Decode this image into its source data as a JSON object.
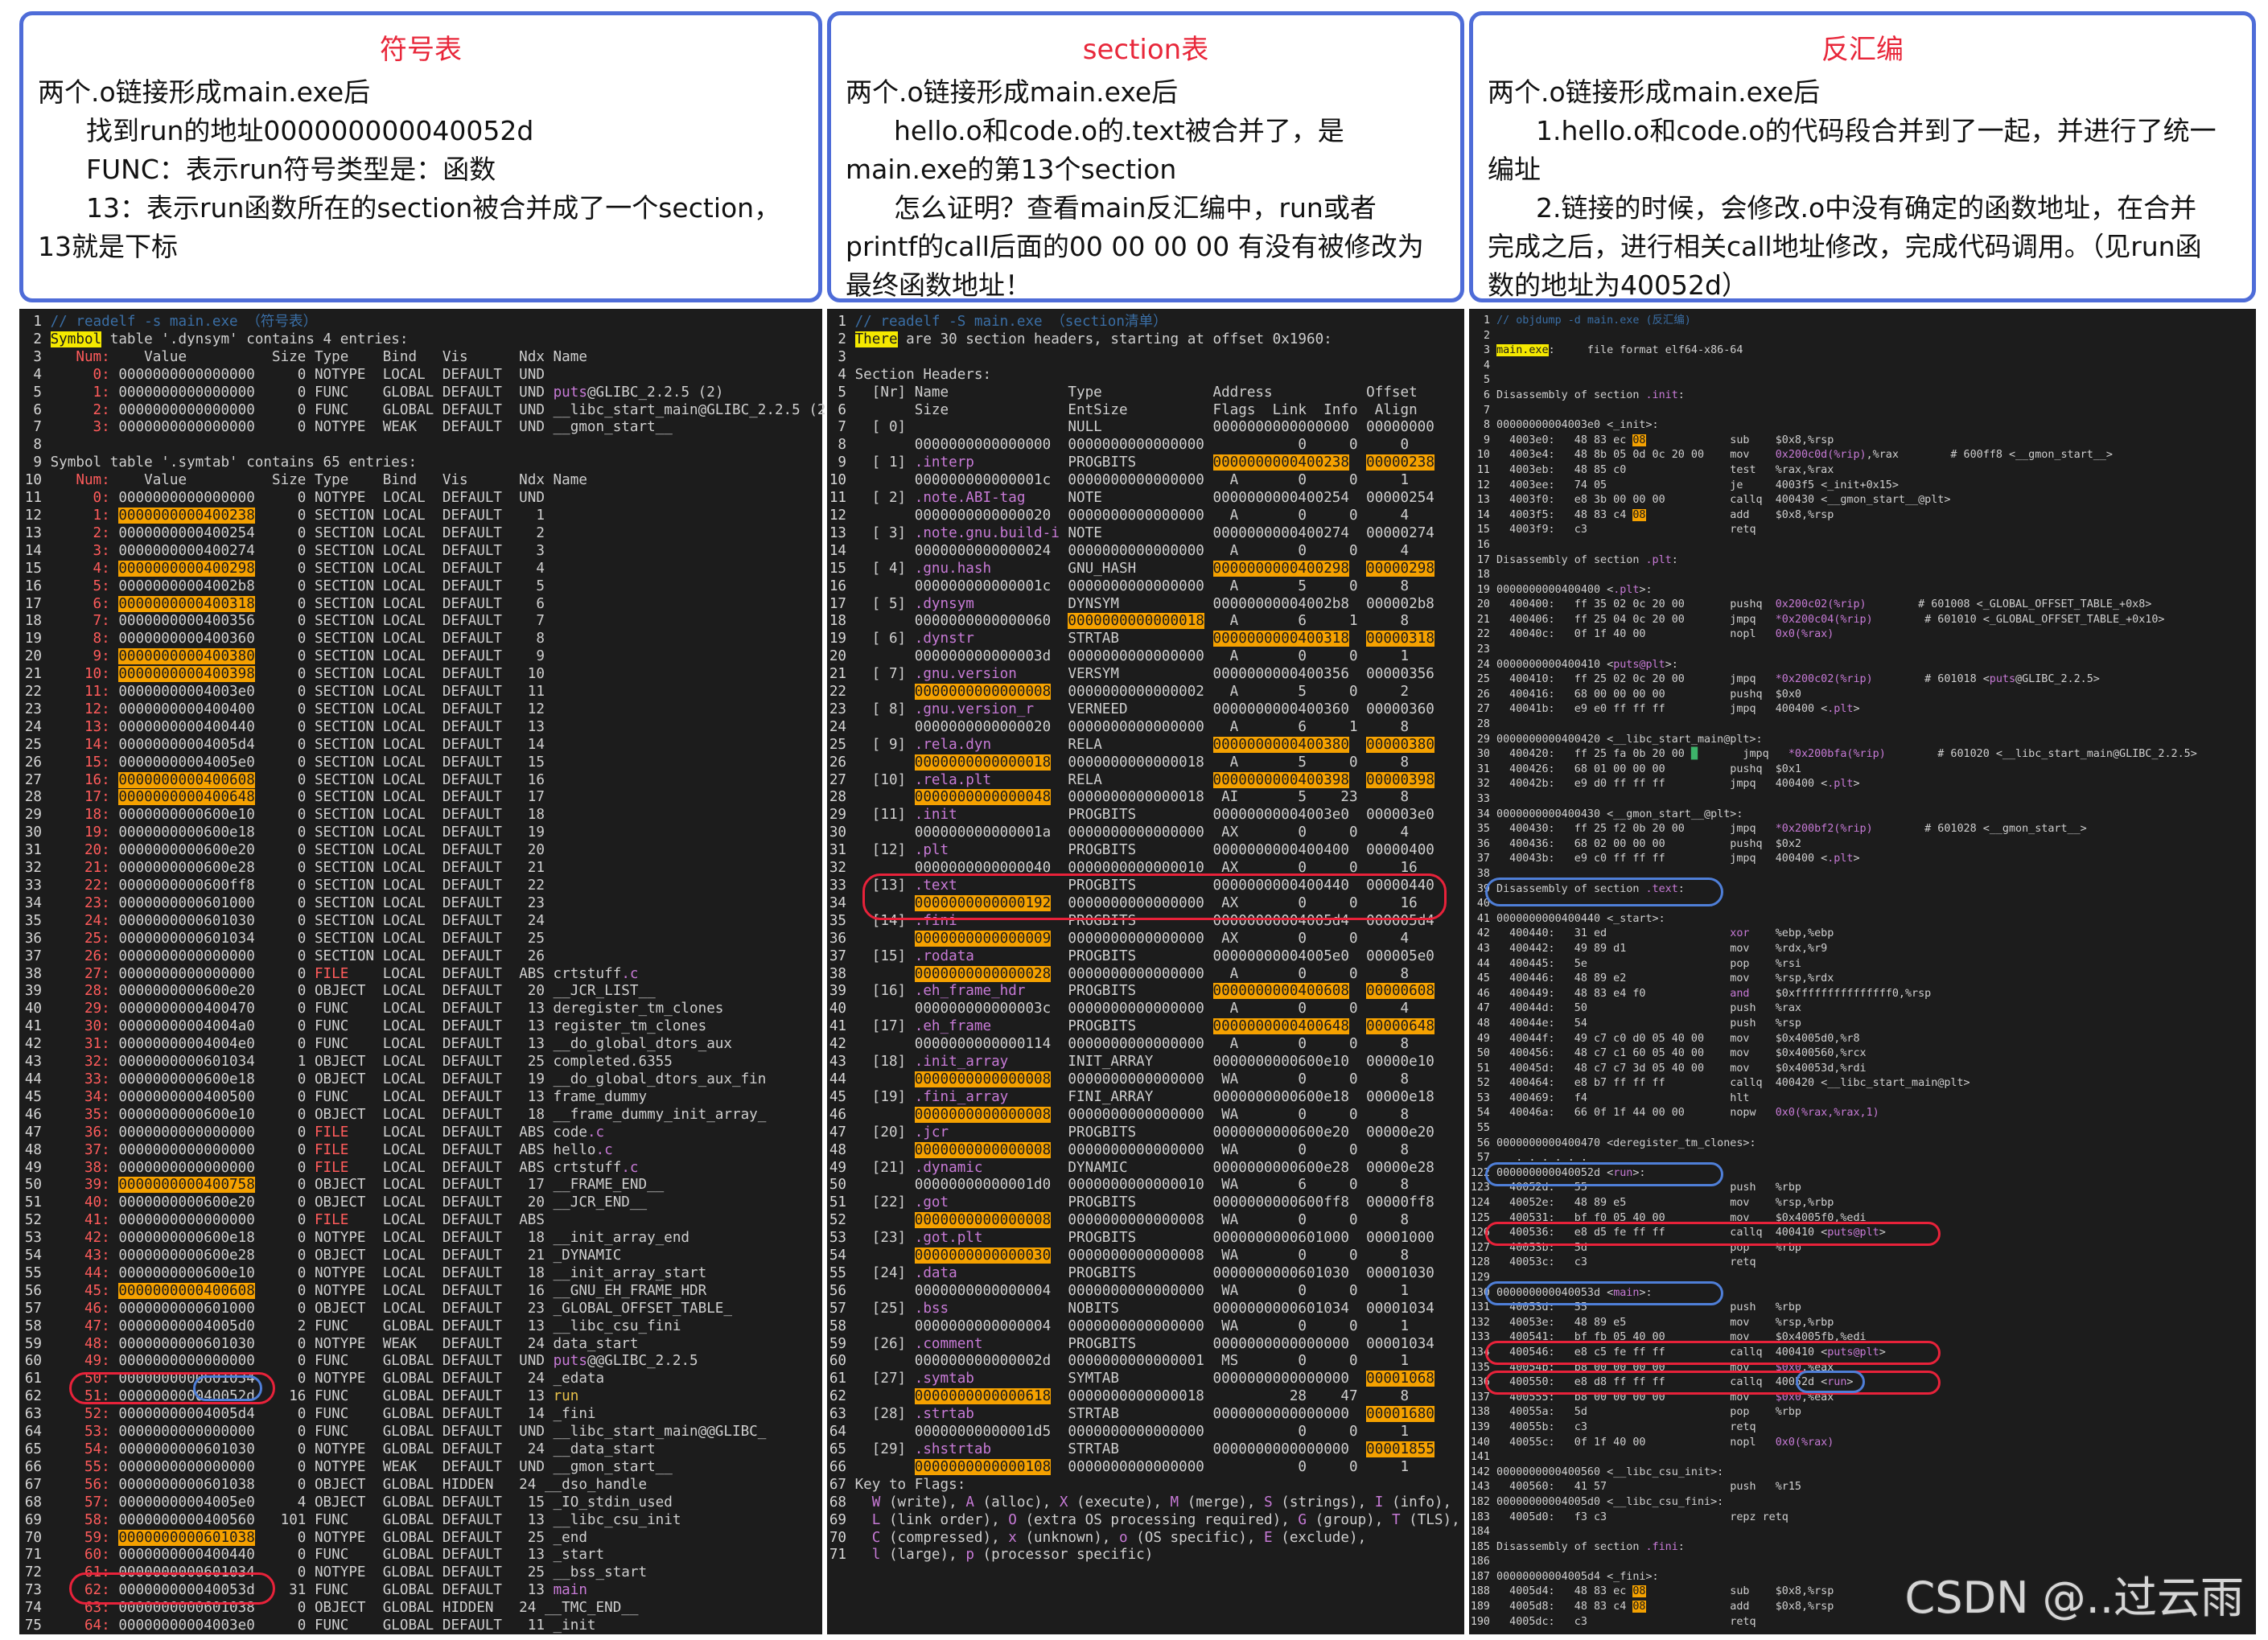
{
  "cards": [
    {
      "title": "符号表",
      "lines": [
        {
          "t": "两个.o链接形成main.exe后",
          "i": false
        },
        {
          "t": "找到run的地址000000000040052d",
          "i": true
        },
        {
          "t": "FUNC：表示run符号类型是：函数",
          "i": true
        },
        {
          "t": "13：表示run函数所在的section被合并成了一个section，",
          "i": true
        },
        {
          "t": "13就是下标",
          "i": false
        }
      ]
    },
    {
      "title": "section表",
      "lines": [
        {
          "t": "两个.o链接形成main.exe后",
          "i": false
        },
        {
          "t": "hello.o和code.o的.text被合并了，是",
          "i": true
        },
        {
          "t": "main.exe的第13个section",
          "i": false
        },
        {
          "t": "怎么证明？查看main反汇编中，run或者",
          "i": true
        },
        {
          "t": "printf的call后面的00 00 00 00 有没有被修改为",
          "i": false
        },
        {
          "t": "最终函数地址！",
          "i": false
        }
      ]
    },
    {
      "title": "反汇编",
      "lines": [
        {
          "t": "两个.o链接形成main.exe后",
          "i": false
        },
        {
          "t": "1.hello.o和code.o的代码段合并到了一起，并进行了统一",
          "i": true
        },
        {
          "t": "编址",
          "i": false
        },
        {
          "t": "2.链接的时候，会修改.o中没有确定的函数地址，在合并",
          "i": true
        },
        {
          "t": "完成之后，进行相关call地址修改，完成代码调用。（见run函",
          "i": false
        },
        {
          "t": "数的地址为40052d）",
          "i": false
        }
      ]
    }
  ],
  "symtab": [
    "1|// readelf -s main.exe （符号表）",
    "2|Symbol table '.dynsym' contains 4 entries:",
    "3|   Num:    Value          Size Type    Bind   Vis      Ndx Name",
    "4|     0: 0000000000000000     0 NOTYPE  LOCAL  DEFAULT  UND",
    "5|     1: 0000000000000000     0 FUNC    GLOBAL DEFAULT  UND puts@GLIBC_2.2.5 (2)",
    "6|     2: 0000000000000000     0 FUNC    GLOBAL DEFAULT  UND __libc_start_main@GLIBC_2.2.5 (2)",
    "7|     3: 0000000000000000     0 NOTYPE  WEAK   DEFAULT  UND __gmon_start__",
    "8|",
    "9|Symbol table '.symtab' contains 65 entries:",
    "10|   Num:    Value          Size Type    Bind   Vis      Ndx Name",
    "11|     0: 0000000000000000     0 NOTYPE  LOCAL  DEFAULT  UND",
    "12|     1: 0000000000400238     0 SECTION LOCAL  DEFAULT    1",
    "13|     2: 0000000000400254     0 SECTION LOCAL  DEFAULT    2",
    "14|     3: 0000000000400274     0 SECTION LOCAL  DEFAULT    3",
    "15|     4: 0000000000400298     0 SECTION LOCAL  DEFAULT    4",
    "16|     5: 00000000004002b8     0 SECTION LOCAL  DEFAULT    5",
    "17|     6: 0000000000400318     0 SECTION LOCAL  DEFAULT    6",
    "18|     7: 0000000000400356     0 SECTION LOCAL  DEFAULT    7",
    "19|     8: 0000000000400360     0 SECTION LOCAL  DEFAULT    8",
    "20|     9: 0000000000400380     0 SECTION LOCAL  DEFAULT    9",
    "21|    10: 0000000000400398     0 SECTION LOCAL  DEFAULT   10",
    "22|    11: 00000000004003e0     0 SECTION LOCAL  DEFAULT   11",
    "23|    12: 0000000000400400     0 SECTION LOCAL  DEFAULT   12",
    "24|    13: 0000000000400440     0 SECTION LOCAL  DEFAULT   13",
    "25|    14: 00000000004005d4     0 SECTION LOCAL  DEFAULT   14",
    "26|    15: 00000000004005e0     0 SECTION LOCAL  DEFAULT   15",
    "27|    16: 0000000000400608     0 SECTION LOCAL  DEFAULT   16",
    "28|    17: 0000000000400648     0 SECTION LOCAL  DEFAULT   17",
    "29|    18: 0000000000600e10     0 SECTION LOCAL  DEFAULT   18",
    "30|    19: 0000000000600e18     0 SECTION LOCAL  DEFAULT   19",
    "31|    20: 0000000000600e20     0 SECTION LOCAL  DEFAULT   20",
    "32|    21: 0000000000600e28     0 SECTION LOCAL  DEFAULT   21",
    "33|    22: 0000000000600ff8     0 SECTION LOCAL  DEFAULT   22",
    "34|    23: 0000000000601000     0 SECTION LOCAL  DEFAULT   23",
    "35|    24: 0000000000601030     0 SECTION LOCAL  DEFAULT   24",
    "36|    25: 0000000000601034     0 SECTION LOCAL  DEFAULT   25",
    "37|    26: 0000000000000000     0 SECTION LOCAL  DEFAULT   26",
    "38|    27: 0000000000000000     0 FILE    LOCAL  DEFAULT  ABS crtstuff.c",
    "39|    28: 0000000000600e20     0 OBJECT  LOCAL  DEFAULT   20 __JCR_LIST__",
    "40|    29: 0000000000400470     0 FUNC    LOCAL  DEFAULT   13 deregister_tm_clones",
    "41|    30: 00000000004004a0     0 FUNC    LOCAL  DEFAULT   13 register_tm_clones",
    "42|    31: 00000000004004e0     0 FUNC    LOCAL  DEFAULT   13 __do_global_dtors_aux",
    "43|    32: 0000000000601034     1 OBJECT  LOCAL  DEFAULT   25 completed.6355",
    "44|    33: 0000000000600e18     0 OBJECT  LOCAL  DEFAULT   19 __do_global_dtors_aux_fin",
    "45|    34: 0000000000400500     0 FUNC    LOCAL  DEFAULT   13 frame_dummy",
    "46|    35: 0000000000600e10     0 OBJECT  LOCAL  DEFAULT   18 __frame_dummy_init_array_",
    "47|    36: 0000000000000000     0 FILE    LOCAL  DEFAULT  ABS code.c",
    "48|    37: 0000000000000000     0 FILE    LOCAL  DEFAULT  ABS hello.c",
    "49|    38: 0000000000000000     0 FILE    LOCAL  DEFAULT  ABS crtstuff.c",
    "50|    39: 0000000000400758     0 OBJECT  LOCAL  DEFAULT   17 __FRAME_END__",
    "51|    40: 0000000000600e20     0 OBJECT  LOCAL  DEFAULT   20 __JCR_END__",
    "52|    41: 0000000000000000     0 FILE    LOCAL  DEFAULT  ABS",
    "53|    42: 0000000000600e18     0 NOTYPE  LOCAL  DEFAULT   18 __init_array_end",
    "54|    43: 0000000000600e28     0 OBJECT  LOCAL  DEFAULT   21 _DYNAMIC",
    "55|    44: 0000000000600e10     0 NOTYPE  LOCAL  DEFAULT   18 __init_array_start",
    "56|    45: 0000000000400608     0 NOTYPE  LOCAL  DEFAULT   16 __GNU_EH_FRAME_HDR",
    "57|    46: 0000000000601000     0 OBJECT  LOCAL  DEFAULT   23 _GLOBAL_OFFSET_TABLE_",
    "58|    47: 00000000004005d0     2 FUNC    GLOBAL DEFAULT   13 __libc_csu_fini",
    "59|    48: 0000000000601030     0 NOTYPE  WEAK   DEFAULT   24 data_start",
    "60|    49: 0000000000000000     0 FUNC    GLOBAL DEFAULT  UND puts@@GLIBC_2.2.5",
    "61|    50: 0000000000601034     0 NOTYPE  GLOBAL DEFAULT   24 _edata",
    "62|    51: 000000000040052d    16 FUNC    GLOBAL DEFAULT   13 run",
    "63|    52: 00000000004005d4     0 FUNC    GLOBAL DEFAULT   14 _fini",
    "64|    53: 0000000000000000     0 FUNC    GLOBAL DEFAULT  UND __libc_start_main@@GLIBC_",
    "65|    54: 0000000000601030     0 NOTYPE  GLOBAL DEFAULT   24 __data_start",
    "66|    55: 0000000000000000     0 NOTYPE  WEAK   DEFAULT  UND __gmon_start__",
    "67|    56: 0000000000601038     0 OBJECT  GLOBAL HIDDEN   24 __dso_handle",
    "68|    57: 00000000004005e0     4 OBJECT  GLOBAL DEFAULT   15 _IO_stdin_used",
    "69|    58: 0000000000400560   101 FUNC    GLOBAL DEFAULT   13 __libc_csu_init",
    "70|    59: 0000000000601038     0 NOTYPE  GLOBAL DEFAULT   25 _end",
    "71|    60: 0000000000400440     0 FUNC    GLOBAL DEFAULT   13 _start",
    "72|    61: 0000000000601034     0 NOTYPE  GLOBAL DEFAULT   25 __bss_start",
    "73|    62: 000000000040053d    31 FUNC    GLOBAL DEFAULT   13 main",
    "74|    63: 0000000000601038     0 OBJECT  GLOBAL HIDDEN   24 __TMC_END__",
    "75|    64: 00000000004003e0     0 FUNC    GLOBAL DEFAULT   11 _init"
  ],
  "sectab": [
    "1|// readelf -S main.exe （section清单）",
    "2|There are 30 section headers, starting at offset 0x1960:",
    "3|",
    "4|Section Headers:",
    "5|  [Nr] Name              Type             Address           Offset",
    "6|       Size              EntSize          Flags  Link  Info  Align",
    "7|  [ 0]                   NULL             0000000000000000  00000000",
    "8|       0000000000000000  0000000000000000           0     0     0",
    "9|  [ 1] .interp           PROGBITS         0000000000400238  00000238",
    "10|       000000000000001c  0000000000000000   A       0     0     1",
    "11|  [ 2] .note.ABI-tag     NOTE             0000000000400254  00000254",
    "12|       0000000000000020  0000000000000000   A       0     0     4",
    "13|  [ 3] .note.gnu.build-i NOTE             0000000000400274  00000274",
    "14|       0000000000000024  0000000000000000   A       0     0     4",
    "15|  [ 4] .gnu.hash         GNU_HASH         0000000000400298  00000298",
    "16|       000000000000001c  0000000000000000   A       5     0     8",
    "17|  [ 5] .dynsym           DYNSYM           00000000004002b8  000002b8",
    "18|       0000000000000060  0000000000000018   A       6     1     8",
    "19|  [ 6] .dynstr           STRTAB           0000000000400318  00000318",
    "20|       000000000000003d  0000000000000000   A       0     0     1",
    "21|  [ 7] .gnu.version      VERSYM           0000000000400356  00000356",
    "22|       0000000000000008  0000000000000002   A       5     0     2",
    "23|  [ 8] .gnu.version_r    VERNEED          0000000000400360  00000360",
    "24|       0000000000000020  0000000000000000   A       6     1     8",
    "25|  [ 9] .rela.dyn         RELA             0000000000400380  00000380",
    "26|       0000000000000018  0000000000000018   A       5     0     8",
    "27|  [10] .rela.plt         RELA             0000000000400398  00000398",
    "28|       0000000000000048  0000000000000018  AI       5    23     8",
    "29|  [11] .init             PROGBITS         00000000004003e0  000003e0",
    "30|       000000000000001a  0000000000000000  AX       0     0     4",
    "31|  [12] .plt              PROGBITS         0000000000400400  00000400",
    "32|       0000000000000040  0000000000000010  AX       0     0     16",
    "33|  [13] .text             PROGBITS         0000000000400440  00000440",
    "34|       0000000000000192  0000000000000000  AX       0     0     16",
    "35|  [14] .fini             PROGBITS         00000000004005d4  000005d4",
    "36|       0000000000000009  0000000000000000  AX       0     0     4",
    "37|  [15] .rodata           PROGBITS         00000000004005e0  000005e0",
    "38|       0000000000000028  0000000000000000   A       0     0     8",
    "39|  [16] .eh_frame_hdr     PROGBITS         0000000000400608  00000608",
    "40|       000000000000003c  0000000000000000   A       0     0     4",
    "41|  [17] .eh_frame         PROGBITS         0000000000400648  00000648",
    "42|       0000000000000114  0000000000000000   A       0     0     8",
    "43|  [18] .init_array       INIT_ARRAY       0000000000600e10  00000e10",
    "44|       0000000000000008  0000000000000000  WA       0     0     8",
    "45|  [19] .fini_array       FINI_ARRAY       0000000000600e18  00000e18",
    "46|       0000000000000008  0000000000000000  WA       0     0     8",
    "47|  [20] .jcr              PROGBITS         0000000000600e20  00000e20",
    "48|       0000000000000008  0000000000000000  WA       0     0     8",
    "49|  [21] .dynamic          DYNAMIC          0000000000600e28  00000e28",
    "50|       00000000000001d0  0000000000000010  WA       6     0     8",
    "51|  [22] .got              PROGBITS         0000000000600ff8  00000ff8",
    "52|       0000000000000008  0000000000000008  WA       0     0     8",
    "53|  [23] .got.plt          PROGBITS         0000000000601000  00001000",
    "54|       0000000000000030  0000000000000008  WA       0     0     8",
    "55|  [24] .data             PROGBITS         0000000000601030  00001030",
    "56|       0000000000000004  0000000000000000  WA       0     0     1",
    "57|  [25] .bss              NOBITS           0000000000601034  00001034",
    "58|       0000000000000004  0000000000000000  WA       0     0     1",
    "59|  [26] .comment          PROGBITS         0000000000000000  00001034",
    "60|       000000000000002d  0000000000000001  MS       0     0     1",
    "61|  [27] .symtab           SYMTAB           0000000000000000  00001068",
    "62|       0000000000000618  0000000000000018          28    47     8",
    "63|  [28] .strtab           STRTAB           0000000000000000  00001680",
    "64|       00000000000001d5  0000000000000000           0     0     1",
    "65|  [29] .shstrtab         STRTAB           0000000000000000  00001855",
    "66|       0000000000000108  0000000000000000           0     0     1",
    "67|Key to Flags:",
    "68|  W (write), A (alloc), X (execute), M (merge), S (strings), I (info),",
    "69|  L (link order), O (extra OS processing required), G (group), T (TLS),",
    "70|  C (compressed), x (unknown), o (OS specific), E (exclude),",
    "71|  l (large), p (processor specific)"
  ],
  "disasm": [
    "1|// objdump -d main.exe (反汇编)",
    "2|",
    "3|main.exe:     file format elf64-x86-64",
    "4|",
    "5|",
    "6|Disassembly of section .init:",
    "7|",
    "8|00000000004003e0 <_init>:",
    "9|  4003e0:   48 83 ec 08             sub    $0x8,%rsp",
    "10|  4003e4:   48 8b 05 0d 0c 20 00    mov    0x200c0d(%rip),%rax        # 600ff8 <__gmon_start__>",
    "11|  4003eb:   48 85 c0                test   %rax,%rax",
    "12|  4003ee:   74 05                   je     4003f5 <_init+0x15>",
    "13|  4003f0:   e8 3b 00 00 00          callq  400430 <__gmon_start__@plt>",
    "14|  4003f5:   48 83 c4 08             add    $0x8,%rsp",
    "15|  4003f9:   c3                      retq",
    "16|",
    "17|Disassembly of section .plt:",
    "18|",
    "19|0000000000400400 <.plt>:",
    "20|  400400:   ff 35 02 0c 20 00       pushq  0x200c02(%rip)        # 601008 <_GLOBAL_OFFSET_TABLE_+0x8>",
    "21|  400406:   ff 25 04 0c 20 00       jmpq   *0x200c04(%rip)        # 601010 <_GLOBAL_OFFSET_TABLE_+0x10>",
    "22|  40040c:   0f 1f 40 00             nopl   0x0(%rax)",
    "23|",
    "24|0000000000400410 <puts@plt>:",
    "25|  400410:   ff 25 02 0c 20 00       jmpq   *0x200c02(%rip)        # 601018 <puts@GLIBC_2.2.5>",
    "26|  400416:   68 00 00 00 00          pushq  $0x0",
    "27|  40041b:   e9 e0 ff ff ff          jmpq   400400 <.plt>",
    "28|",
    "29|0000000000400420 <__libc_start_main@plt>:",
    "30|  400420:   ff 25 fa 0b 20 00       jmpq   *0x200bfa(%rip)        # 601020 <__libc_start_main@GLIBC_2.2.5>",
    "31|  400426:   68 01 00 00 00          pushq  $0x1",
    "32|  40042b:   e9 d0 ff ff ff          jmpq   400400 <.plt>",
    "33|",
    "34|0000000000400430 <__gmon_start__@plt>:",
    "35|  400430:   ff 25 f2 0b 20 00       jmpq   *0x200bf2(%rip)        # 601028 <__gmon_start__>",
    "36|  400436:   68 02 00 00 00          pushq  $0x2",
    "37|  40043b:   e9 c0 ff ff ff          jmpq   400400 <.plt>",
    "38|",
    "39|Disassembly of section .text:",
    "40|",
    "41|0000000000400440 <_start>:",
    "42|  400440:   31 ed                   xor    %ebp,%ebp",
    "43|  400442:   49 89 d1                mov    %rdx,%r9",
    "44|  400445:   5e                      pop    %rsi",
    "45|  400446:   48 89 e2                mov    %rsp,%rdx",
    "46|  400449:   48 83 e4 f0             and    $0xfffffffffffffff0,%rsp",
    "47|  40044d:   50                      push   %rax",
    "48|  40044e:   54                      push   %rsp",
    "49|  40044f:   49 c7 c0 d0 05 40 00    mov    $0x4005d0,%r8",
    "50|  400456:   48 c7 c1 60 05 40 00    mov    $0x400560,%rcx",
    "51|  40045d:   48 c7 c7 3d 05 40 00    mov    $0x40053d,%rdi",
    "52|  400464:   e8 b7 ff ff ff          callq  400420 <__libc_start_main@plt>",
    "53|  400469:   f4                      hlt",
    "54|  40046a:   66 0f 1f 44 00 00       nopw   0x0(%rax,%rax,1)",
    "55|",
    "56|0000000000400470 <deregister_tm_clones>:",
    "57|   . . . . . .",
    "122|000000000040052d <run>:",
    "123|  40052d:   55                      push   %rbp",
    "124|  40052e:   48 89 e5                mov    %rsp,%rbp",
    "125|  400531:   bf f0 05 40 00          mov    $0x4005f0,%edi",
    "126|  400536:   e8 d5 fe ff ff          callq  400410 <puts@plt>",
    "127|  40053b:   5d                      pop    %rbp",
    "128|  40053c:   c3                      retq",
    "129|",
    "130|000000000040053d <main>:",
    "131|  40053d:   55                      push   %rbp",
    "132|  40053e:   48 89 e5                mov    %rsp,%rbp",
    "133|  400541:   bf fb 05 40 00          mov    $0x4005fb,%edi",
    "134|  400546:   e8 c5 fe ff ff          callq  400410 <puts@plt>",
    "135|  40054b:   b8 00 00 00 00          mov    $0x0,%eax",
    "136|  400550:   e8 d8 ff ff ff          callq  40052d <run>",
    "137|  400555:   b8 00 00 00 00          mov    $0x0,%eax",
    "138|  40055a:   5d                      pop    %rbp",
    "139|  40055b:   c3                      retq",
    "140|  40055c:   0f 1f 40 00             nopl   0x0(%rax)",
    "141|",
    "142|0000000000400560 <__libc_csu_init>:",
    "143|  400560:   41 57                   push   %r15",
    "182|00000000004005d0 <__libc_csu_fini>:",
    "183|  4005d0:   f3 c3                   repz retq",
    "184|",
    "185|Disassembly of section .fini:",
    "186|",
    "187|00000000004005d4 <_fini>:",
    "188|  4005d4:   48 83 ec 08             sub    $0x8,%rsp",
    "189|  4005d8:   48 83 c4 08             add    $0x8,%rsp",
    "190|  4005dc:   c3                      retq"
  ],
  "watermark": "CSDN @..过云雨"
}
